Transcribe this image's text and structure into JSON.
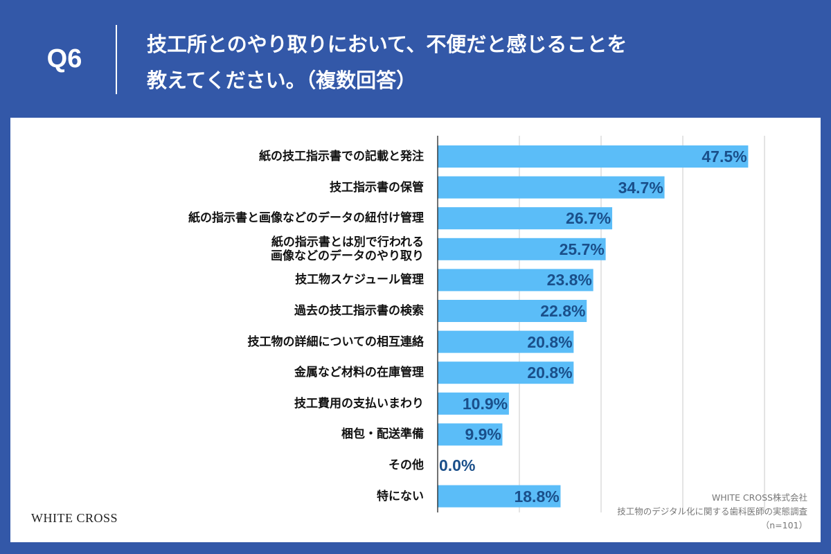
{
  "header": {
    "question_no": "Q6",
    "title_line1": "技工所とのやり取りにおいて、不便だと感じることを",
    "title_line2": "教えてください。（複数回答）"
  },
  "footer": {
    "logo": "WHITE CROSS",
    "company": "WHITE CROSS株式会社",
    "survey": "技工物のデジタル化に関する歯科医師の実態調査",
    "sample": "（n=101）"
  },
  "colors": {
    "background": "#3358a8",
    "bar": "#5bbdf8",
    "value_label": "#1a4f8a"
  },
  "chart_data": {
    "type": "bar",
    "orientation": "horizontal",
    "categories": [
      "紙の技工指示書での記載と発注",
      "技工指示書の保管",
      "紙の指示書と画像などのデータの紐付け管理",
      "紙の指示書とは別で行われる\n画像などのデータのやり取り",
      "技工物スケジュール管理",
      "過去の技工指示書の検索",
      "技工物の詳細についての相互連絡",
      "金属など材料の在庫管理",
      "技工費用の支払いまわり",
      "梱包・配送準備",
      "その他",
      "特にない"
    ],
    "values": [
      47.5,
      34.7,
      26.7,
      25.7,
      23.8,
      22.8,
      20.8,
      20.8,
      10.9,
      9.9,
      0.0,
      18.8
    ],
    "value_labels": [
      "47.5%",
      "34.7%",
      "26.7%",
      "25.7%",
      "23.8%",
      "22.8%",
      "20.8%",
      "20.8%",
      "10.9%",
      "9.9%",
      "0.0%",
      "18.8%"
    ],
    "unit": "%",
    "xlim": [
      0,
      50
    ],
    "grid": true,
    "grid_step": 12.5,
    "legend": "none"
  }
}
